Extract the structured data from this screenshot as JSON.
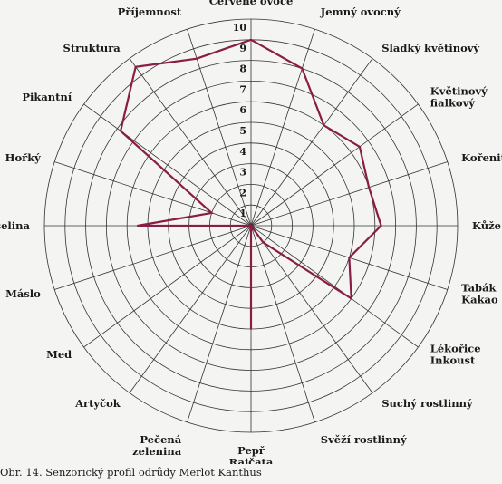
{
  "caption": "Obr. 14. Senzorický profil odrůdy Merlot Kanthus",
  "colors": {
    "series": "#8a1d45",
    "grid": "#333333",
    "background": "#f4f4f2"
  },
  "chart_data": {
    "type": "radar",
    "title": "",
    "rlim": [
      0,
      10
    ],
    "ticks": [
      1,
      2,
      3,
      4,
      5,
      6,
      7,
      8,
      9,
      10
    ],
    "grid": true,
    "categories": [
      "Červené ovoce",
      "Jemný ovocný",
      "Sladký květinový",
      "Květinový fialkový",
      "Kořenitý",
      "Kůže",
      "Tabák Kakao",
      "Lékořice Inkoust",
      "Suchý rostlinný",
      "Svěží rostlinný",
      "Pepř Rajčata",
      "Pečená zelenina",
      "Artyčok",
      "Med",
      "Máslo",
      "Kyselina",
      "Hořký",
      "Pikantní",
      "Struktura",
      "Příjemnost"
    ],
    "series": [
      {
        "name": "",
        "values": [
          9,
          8,
          6,
          6.5,
          6,
          6.3,
          5,
          6,
          1,
          0,
          5,
          0,
          0,
          0,
          0,
          5.5,
          2,
          7.8,
          9.5,
          8.5
        ]
      }
    ]
  }
}
